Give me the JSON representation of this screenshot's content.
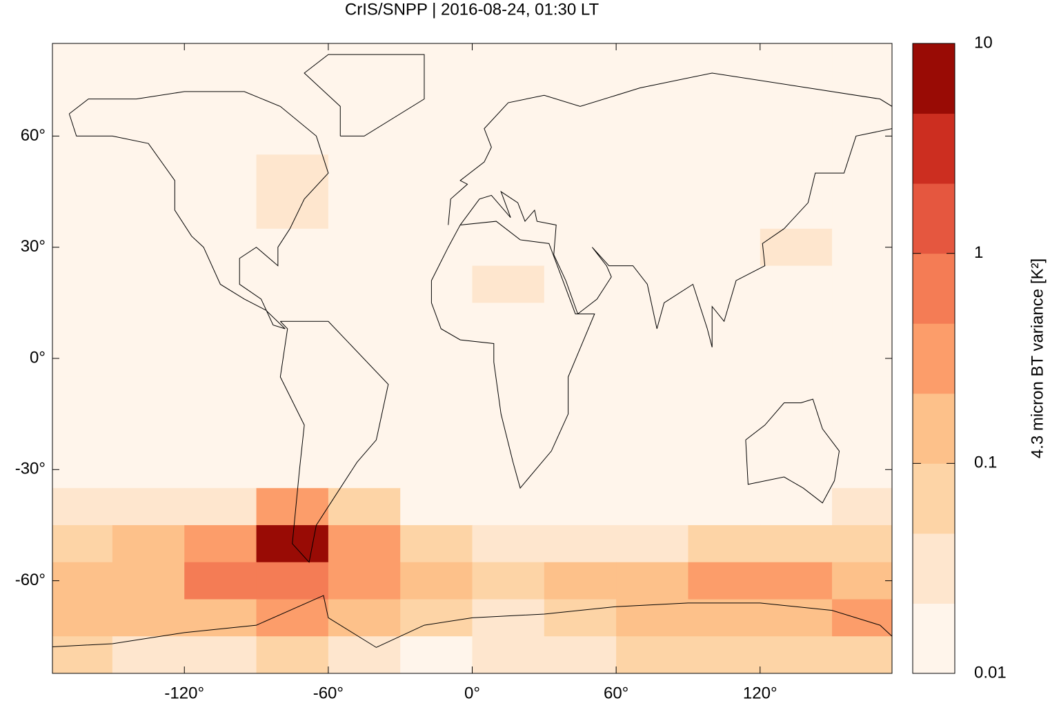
{
  "chart_data": {
    "type": "heatmap",
    "title": "CrIS/SNPP | 2016-08-24, 01:30 LT",
    "xlim": [
      -175,
      175
    ],
    "ylim": [
      -85,
      85
    ],
    "xticks": [
      {
        "value": -120,
        "label": "-120°"
      },
      {
        "value": -60,
        "label": "-60°"
      },
      {
        "value": 0,
        "label": "0°"
      },
      {
        "value": 60,
        "label": "60°"
      },
      {
        "value": 120,
        "label": "120°"
      }
    ],
    "yticks": [
      {
        "value": 60,
        "label": "60°"
      },
      {
        "value": 30,
        "label": "30°"
      },
      {
        "value": 0,
        "label": "0°"
      },
      {
        "value": -30,
        "label": "-30°"
      },
      {
        "value": -60,
        "label": "-60°"
      }
    ],
    "x": [
      -165,
      -135,
      -105,
      -75,
      -45,
      -15,
      15,
      45,
      75,
      105,
      135,
      165
    ],
    "y": [
      80,
      70,
      60,
      50,
      40,
      30,
      20,
      10,
      0,
      -10,
      -20,
      -30,
      -40,
      -50,
      -60,
      -70,
      -80
    ],
    "z": [
      [
        0.015,
        0.015,
        0.015,
        0.015,
        0.015,
        0.015,
        0.015,
        0.015,
        0.015,
        0.015,
        0.015,
        0.015
      ],
      [
        0.015,
        0.015,
        0.015,
        0.015,
        0.015,
        0.015,
        0.015,
        0.015,
        0.015,
        0.015,
        0.015,
        0.015
      ],
      [
        0.015,
        0.015,
        0.015,
        0.015,
        0.015,
        0.015,
        0.015,
        0.015,
        0.015,
        0.015,
        0.015,
        0.015
      ],
      [
        0.015,
        0.015,
        0.015,
        0.025,
        0.015,
        0.015,
        0.015,
        0.015,
        0.015,
        0.015,
        0.015,
        0.015
      ],
      [
        0.015,
        0.015,
        0.015,
        0.025,
        0.015,
        0.015,
        0.015,
        0.015,
        0.015,
        0.015,
        0.015,
        0.015
      ],
      [
        0.015,
        0.015,
        0.015,
        0.015,
        0.015,
        0.015,
        0.015,
        0.015,
        0.015,
        0.015,
        0.025,
        0.015
      ],
      [
        0.015,
        0.015,
        0.015,
        0.015,
        0.015,
        0.015,
        0.025,
        0.015,
        0.015,
        0.015,
        0.015,
        0.015
      ],
      [
        0.015,
        0.015,
        0.015,
        0.015,
        0.015,
        0.015,
        0.015,
        0.015,
        0.015,
        0.015,
        0.015,
        0.015
      ],
      [
        0.015,
        0.015,
        0.015,
        0.015,
        0.015,
        0.015,
        0.015,
        0.015,
        0.015,
        0.015,
        0.015,
        0.015
      ],
      [
        0.015,
        0.015,
        0.015,
        0.015,
        0.015,
        0.015,
        0.015,
        0.015,
        0.015,
        0.015,
        0.015,
        0.015
      ],
      [
        0.015,
        0.015,
        0.015,
        0.015,
        0.015,
        0.015,
        0.015,
        0.015,
        0.015,
        0.015,
        0.015,
        0.015
      ],
      [
        0.015,
        0.015,
        0.015,
        0.015,
        0.015,
        0.015,
        0.015,
        0.015,
        0.015,
        0.015,
        0.015,
        0.015
      ],
      [
        0.03,
        0.03,
        0.03,
        0.3,
        0.05,
        0.02,
        0.015,
        0.015,
        0.015,
        0.015,
        0.015,
        0.03
      ],
      [
        0.06,
        0.1,
        0.3,
        5,
        0.3,
        0.08,
        0.03,
        0.03,
        0.04,
        0.05,
        0.08,
        0.05
      ],
      [
        0.2,
        0.15,
        0.6,
        0.5,
        0.3,
        0.15,
        0.06,
        0.1,
        0.15,
        0.3,
        0.3,
        0.2
      ],
      [
        0.15,
        0.1,
        0.2,
        0.3,
        0.15,
        0.05,
        0.04,
        0.08,
        0.15,
        0.1,
        0.15,
        0.4
      ],
      [
        0.05,
        0.03,
        0.03,
        0.05,
        0.03,
        0.02,
        0.03,
        0.04,
        0.05,
        0.05,
        0.05,
        0.08
      ]
    ],
    "colorbar": {
      "label": "4.3 micron BT variance [K²]",
      "log": true,
      "clim": [
        0.01,
        10
      ],
      "ticks": [
        0.01,
        0.1,
        1,
        10
      ],
      "colors": [
        "#fff5eb",
        "#fee6ce",
        "#fdd4a6",
        "#fdc18a",
        "#fc9d6a",
        "#f47c55",
        "#e5573f",
        "#cc2e20",
        "#990b05"
      ]
    }
  }
}
